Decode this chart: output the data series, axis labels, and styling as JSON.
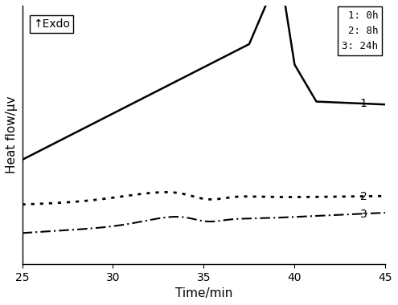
{
  "title": "",
  "xlabel": "Time/min",
  "ylabel": "Heat flow/μv",
  "xlim": [
    25,
    45
  ],
  "ylim": [
    -1.0,
    2.2
  ],
  "x_ticks": [
    25,
    30,
    35,
    40,
    45
  ],
  "annotation_exdo": "↑Exdo",
  "legend_entries": [
    "1: 0h",
    "2: 8h",
    "3: 24h"
  ],
  "line1_color": "#000000",
  "line2_color": "#000000",
  "line3_color": "#000000",
  "background_color": "#ffffff"
}
